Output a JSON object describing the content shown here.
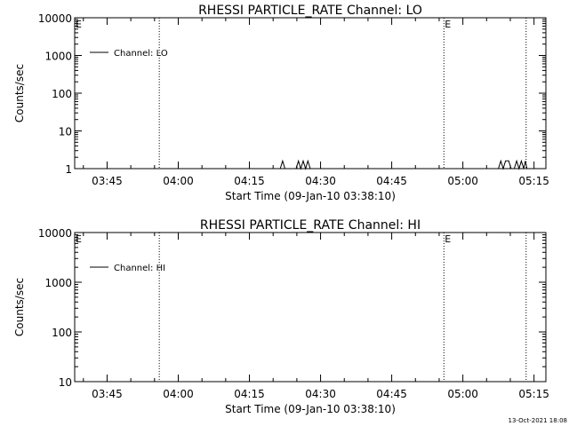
{
  "chart_data": [
    {
      "type": "line",
      "title": "RHESSI PARTICLE_RATE Channel: LO",
      "xlabel": "Start Time (09-Jan-10 03:38:10)",
      "ylabel": "Counts/sec",
      "y_scale": "log",
      "ylim": [
        1,
        10000
      ],
      "xlim": [
        "03:38:10",
        "05:17:30"
      ],
      "x_ticks": [
        "03:45",
        "04:00",
        "04:15",
        "04:30",
        "04:45",
        "05:00",
        "05:15"
      ],
      "y_ticks": [
        "1",
        "10",
        "100",
        "1000",
        "10000"
      ],
      "legend": {
        "position": "top-left",
        "entries": [
          "Channel: LO"
        ]
      },
      "grid": false,
      "markers": [
        {
          "x": "03:56:00",
          "label": ""
        },
        {
          "x": "04:56:00",
          "label": "E"
        },
        {
          "x": "05:13:20",
          "label": ""
        }
      ],
      "corner_label": "E",
      "series": [
        {
          "name": "Channel: LO",
          "points": [
            [
              "04:21:30",
              1
            ],
            [
              "04:22:00",
              1.6
            ],
            [
              "04:22:30",
              1
            ],
            [
              "04:24:50",
              1
            ],
            [
              "04:25:20",
              1.6
            ],
            [
              "04:25:50",
              1
            ],
            [
              "04:26:20",
              1.6
            ],
            [
              "04:26:50",
              1
            ],
            [
              "04:27:20",
              1.6
            ],
            [
              "04:27:50",
              1
            ],
            [
              "05:07:30",
              1
            ],
            [
              "05:08:00",
              1.6
            ],
            [
              "05:08:30",
              1
            ],
            [
              "05:09:00",
              1.6
            ],
            [
              "05:09:40",
              1.6
            ],
            [
              "05:10:10",
              1
            ],
            [
              "05:10:50",
              1
            ],
            [
              "05:11:20",
              1.6
            ],
            [
              "05:11:50",
              1
            ],
            [
              "05:12:20",
              1.6
            ],
            [
              "05:12:50",
              1
            ],
            [
              "05:13:10",
              1.6
            ],
            [
              "05:13:30",
              1
            ]
          ]
        }
      ]
    },
    {
      "type": "line",
      "title": "RHESSI PARTICLE_RATE Channel: HI",
      "xlabel": "Start Time (09-Jan-10 03:38:10)",
      "ylabel": "Counts/sec",
      "y_scale": "log",
      "ylim": [
        10,
        10000
      ],
      "xlim": [
        "03:38:10",
        "05:17:30"
      ],
      "x_ticks": [
        "03:45",
        "04:00",
        "04:15",
        "04:30",
        "04:45",
        "05:00",
        "05:15"
      ],
      "y_ticks": [
        "10",
        "100",
        "1000",
        "10000"
      ],
      "legend": {
        "position": "top-left",
        "entries": [
          "Channel: HI"
        ]
      },
      "grid": false,
      "markers": [
        {
          "x": "03:56:00",
          "label": ""
        },
        {
          "x": "04:56:00",
          "label": "E"
        },
        {
          "x": "05:13:20",
          "label": ""
        }
      ],
      "corner_label": "E",
      "series": [
        {
          "name": "Channel: HI",
          "points": []
        }
      ]
    }
  ],
  "footer": {
    "timestamp": "13-Oct-2021 18:08"
  },
  "colors": {
    "background": "#ffffff",
    "foreground": "#000000"
  }
}
